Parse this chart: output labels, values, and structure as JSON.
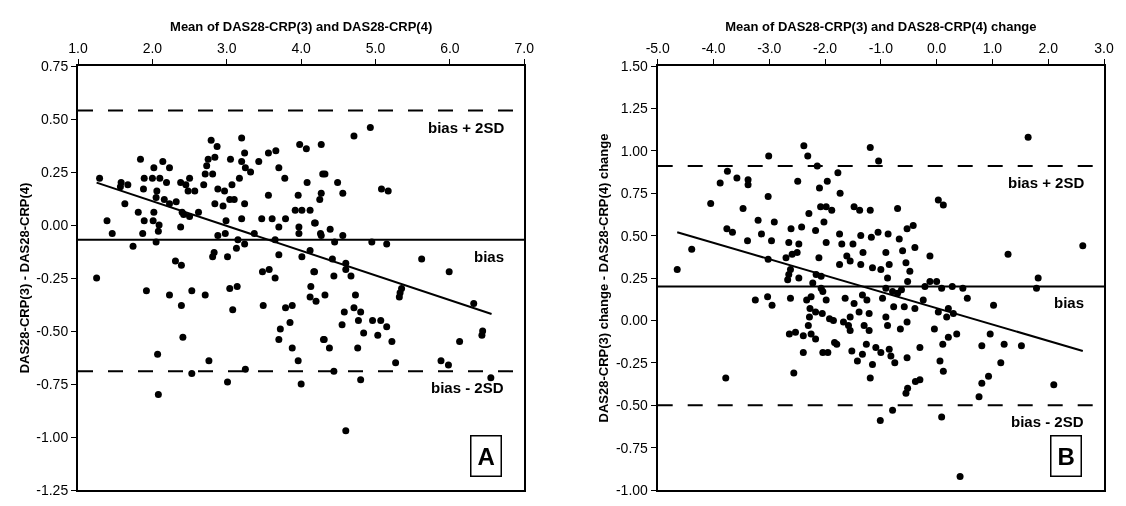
{
  "chart_data": [
    {
      "type": "scatter",
      "xlabel": "Mean of DAS28-CRP(3) and DAS28-CRP(4)",
      "ylabel": "DAS28-CRP(3) - DAS28-CRP(4)",
      "xlim": [
        1.0,
        7.0
      ],
      "xticks": [
        {
          "value": 1,
          "label": "1.0"
        },
        {
          "value": 2,
          "label": "2.0"
        },
        {
          "value": 3,
          "label": "3.0"
        },
        {
          "value": 4,
          "label": "4.0"
        },
        {
          "value": 5,
          "label": "5.0"
        },
        {
          "value": 6,
          "label": "6.0"
        },
        {
          "value": 7,
          "label": "7.0"
        }
      ],
      "ylim": [
        -1.25,
        0.75
      ],
      "yticks": [
        {
          "value": 0.75,
          "label": "0.75"
        },
        {
          "value": 0.5,
          "label": "0.50"
        },
        {
          "value": 0.25,
          "label": "0.25"
        },
        {
          "value": 0,
          "label": "0.00"
        },
        {
          "value": -0.25,
          "label": "-0.25"
        },
        {
          "value": -0.5,
          "label": "-0.50"
        },
        {
          "value": -0.75,
          "label": "-0.75"
        },
        {
          "value": -1,
          "label": "-1.00"
        },
        {
          "value": -1.25,
          "label": "-1.25"
        }
      ],
      "series": [
        {
          "marker": "circle",
          "color": "#000000",
          "x": [
            1.29,
            1.25,
            1.39,
            1.46,
            1.57,
            1.58,
            1.67,
            1.63,
            1.74,
            1.81,
            1.84,
            1.88,
            1.89,
            1.87,
            1.89,
            1.92,
            2.0,
            2.02,
            2.02,
            2.01,
            2.06,
            2.05,
            2.09,
            2.08,
            2.05,
            2.14,
            2.1,
            2.19,
            2.23,
            2.16,
            2.23,
            2.32,
            2.23,
            2.07,
            2.08,
            2.31,
            2.39,
            2.38,
            2.4,
            2.42,
            2.38,
            2.5,
            2.45,
            2.48,
            2.57,
            2.5,
            2.62,
            2.39,
            2.41,
            2.53,
            2.53,
            2.69,
            2.71,
            2.73,
            2.75,
            2.81,
            2.79,
            2.84,
            2.87,
            2.84,
            2.88,
            2.95,
            2.97,
            3.05,
            3.04,
            2.99,
            2.98,
            2.88,
            2.83,
            2.81,
            2.71,
            2.76,
            3.01,
            3.04,
            3.14,
            3.08,
            3.01,
            3.07,
            3.1,
            3.13,
            3.15,
            3.17,
            3.2,
            3.2,
            3.24,
            3.25,
            3.24,
            3.2,
            3.24,
            3.25,
            3.32,
            3.37,
            3.43,
            3.47,
            3.48,
            3.49,
            3.57,
            3.56,
            3.56,
            3.61,
            3.65,
            3.66,
            3.7,
            3.7,
            3.78,
            3.65,
            3.7,
            3.7,
            3.72,
            3.79,
            3.79,
            3.85,
            3.88,
            3.88,
            3.96,
            3.96,
            3.97,
            3.97,
            3.92,
            3.98,
            4.07,
            4.01,
            4.0,
            4.01,
            4.08,
            4.12,
            4.12,
            4.17,
            4.13,
            4.12,
            4.18,
            4.2,
            4.27,
            4.29,
            4.25,
            4.26,
            4.3,
            4.71,
            4.93,
            4.32,
            4.49,
            4.56,
            4.27,
            5.08,
            5.17,
            4.19,
            4.27,
            4.39,
            4.45,
            4.56,
            4.95,
            5.15,
            4.42,
            4.6,
            4.6,
            4.18,
            4.44,
            4.67,
            5.62,
            5.99,
            4.32,
            4.73,
            4.71,
            4.8,
            4.58,
            4.55,
            4.77,
            4.96,
            5.07,
            5.15,
            5.03,
            4.84,
            5.35,
            5.32,
            5.33,
            6.32,
            6.44,
            6.43,
            6.13,
            4.31,
            4.38,
            4.76,
            5.22,
            5.27,
            5.88,
            5.98,
            4.44,
            4.8,
            6.55,
            4.6
          ],
          "values": [
            0.22,
            -0.25,
            0.02,
            -0.04,
            0.18,
            0.2,
            0.19,
            0.1,
            -0.1,
            0.06,
            0.31,
            0.17,
            0.22,
            -0.04,
            0.02,
            -0.31,
            0.22,
            0.27,
            0.06,
            0.02,
            0.16,
            0.13,
            0.0,
            -0.03,
            -0.08,
            0.3,
            0.22,
            0.2,
            0.27,
            0.12,
            0.1,
            0.11,
            -0.33,
            -0.61,
            -0.8,
            -0.17,
            -0.19,
            -0.01,
            0.06,
            0.05,
            0.2,
            0.22,
            0.19,
            0.16,
            0.16,
            0.04,
            0.06,
            -0.38,
            -0.53,
            -0.31,
            -0.7,
            0.19,
            0.24,
            0.28,
            0.31,
            0.24,
            0.4,
            0.32,
            0.37,
            0.1,
            0.17,
            0.09,
            0.16,
            0.31,
            0.12,
            0.02,
            -0.04,
            -0.05,
            -0.13,
            -0.15,
            -0.33,
            -0.64,
            -0.15,
            -0.3,
            -0.29,
            -0.4,
            -0.74,
            0.19,
            0.12,
            -0.11,
            -0.07,
            0.22,
            0.3,
            0.41,
            0.34,
            0.27,
            0.1,
            0.03,
            -0.09,
            -0.68,
            0.25,
            -0.04,
            0.3,
            0.03,
            -0.22,
            -0.38,
            -0.21,
            0.14,
            0.34,
            0.03,
            -0.25,
            0.35,
            -0.01,
            0.27,
            0.22,
            -0.07,
            -0.14,
            -0.54,
            -0.49,
            0.03,
            -0.39,
            -0.46,
            -0.38,
            -0.58,
            -0.64,
            0.14,
            -0.01,
            -0.04,
            0.07,
            0.38,
            0.36,
            -0.15,
            -0.75,
            0.07,
            0.2,
            0.07,
            -0.12,
            -0.22,
            -0.29,
            -0.34,
            0.01,
            -0.36,
            0.38,
            0.24,
            0.12,
            -0.04,
            -0.54,
            0.42,
            0.46,
            0.24,
            0.2,
            0.15,
            0.15,
            0.17,
            0.16,
            0.01,
            -0.05,
            -0.02,
            -0.08,
            -0.05,
            -0.08,
            -0.09,
            -0.16,
            -0.18,
            -0.21,
            -0.22,
            -0.24,
            -0.24,
            -0.16,
            -0.22,
            -0.33,
            -0.33,
            -0.39,
            -0.41,
            -0.41,
            -0.47,
            -0.45,
            -0.45,
            -0.45,
            -0.48,
            -0.52,
            -0.51,
            -0.3,
            -0.34,
            -0.32,
            -0.37,
            -0.5,
            -0.52,
            -0.55,
            -0.54,
            -0.58,
            -0.58,
            -0.55,
            -0.65,
            -0.64,
            -0.66,
            -0.69,
            -0.73,
            -0.72,
            -0.97
          ]
        },
        {
          "type": "line",
          "marker": "none",
          "line_style": "solid",
          "color": "#000000",
          "x": [
            1.25,
            6.56
          ],
          "values": [
            0.2,
            -0.42
          ]
        }
      ],
      "ref_lines": [
        {
          "axis": "y",
          "value": 0.54,
          "label": "bias + 2SD",
          "color": "#000000",
          "line_style": "dashed"
        },
        {
          "axis": "y",
          "value": -0.07,
          "label": "bias",
          "color": "#000000",
          "line_style": "solid"
        },
        {
          "axis": "y",
          "value": -0.69,
          "label": "bias - 2SD",
          "color": "#000000",
          "line_style": "dashed"
        }
      ],
      "annotations": [
        "A"
      ]
    },
    {
      "type": "scatter",
      "xlabel": "Mean of DAS28-CRP(3) and DAS28-CRP(4) change",
      "ylabel": "DAS28-CRP(3) change - DAS28-CRP(4) change",
      "xlim": [
        -5.0,
        3.0
      ],
      "xticks": [
        {
          "value": -5,
          "label": "-5.0"
        },
        {
          "value": -4,
          "label": "-4.0"
        },
        {
          "value": -3,
          "label": "-3.0"
        },
        {
          "value": -2,
          "label": "-2.0"
        },
        {
          "value": -1,
          "label": "-1.0"
        },
        {
          "value": 0,
          "label": "0.0"
        },
        {
          "value": 1,
          "label": "1.0"
        },
        {
          "value": 2,
          "label": "2.0"
        },
        {
          "value": 3,
          "label": "3.0"
        }
      ],
      "ylim": [
        -1.0,
        1.5
      ],
      "yticks": [
        {
          "value": 1.5,
          "label": "1.50"
        },
        {
          "value": 1.25,
          "label": "1.25"
        },
        {
          "value": 1,
          "label": "1.00"
        },
        {
          "value": 0.75,
          "label": "0.75"
        },
        {
          "value": 0.5,
          "label": "0.50"
        },
        {
          "value": 0.25,
          "label": "0.25"
        },
        {
          "value": 0,
          "label": "0.00"
        },
        {
          "value": -0.25,
          "label": "-0.25"
        },
        {
          "value": -0.5,
          "label": "-0.50"
        },
        {
          "value": -0.75,
          "label": "-0.75"
        },
        {
          "value": -1,
          "label": "-1.00"
        }
      ],
      "series": [
        {
          "marker": "circle",
          "color": "#000000",
          "x": [
            -4.65,
            -4.39,
            -4.05,
            -3.88,
            -3.75,
            -3.58,
            -3.38,
            -3.38,
            -3.47,
            -3.76,
            -3.66,
            -3.39,
            -3.78,
            -3.2,
            -3.14,
            -3.02,
            -3.01,
            -2.91,
            -2.96,
            -3.02,
            -3.25,
            -3.03,
            -2.95,
            -2.7,
            -2.65,
            -2.67,
            -2.62,
            -2.61,
            -2.65,
            -2.59,
            -2.5,
            -2.47,
            -2.49,
            -2.42,
            -2.47,
            -2.62,
            -2.64,
            -2.53,
            -2.56,
            -2.38,
            -2.31,
            -2.29,
            -2.14,
            -2.1,
            -2.17,
            -2.11,
            -2.39,
            -2.33,
            -2.27,
            -2.28,
            -2.3,
            -2.39,
            -2.25,
            -2.17,
            -2.25,
            -2.22,
            -2.16,
            -2.07,
            -2.07,
            -2.04,
            -2.17,
            -2.05,
            -1.98,
            -2.04,
            -1.95,
            -2.08,
            -1.98,
            -2.02,
            -1.96,
            -1.88,
            -1.98,
            -1.92,
            -1.83,
            -1.19,
            -1.04,
            -1.77,
            -1.73,
            -1.48,
            -1.38,
            -1.19,
            -0.7,
            0.03,
            0.12,
            -1.74,
            -1.7,
            -1.5,
            -1.36,
            -1.17,
            -1.05,
            -0.87,
            -0.53,
            -0.42,
            -0.67,
            -0.61,
            -0.39,
            -0.91,
            -1.32,
            -1.61,
            -1.55,
            -1.74,
            -1.36,
            -1.15,
            -1.0,
            -0.85,
            -0.55,
            -0.48,
            -0.12,
            -0.88,
            -0.52,
            -0.91,
            -0.79,
            -0.7,
            -0.63,
            -0.21,
            -0.12,
            0.0,
            0.09,
            0.28,
            0.47,
            0.55,
            1.02,
            1.28,
            2.62,
            1.82,
            1.79,
            1.64,
            -1.64,
            -1.48,
            -1.33,
            -1.25,
            -0.97,
            -0.77,
            -0.58,
            -0.39,
            -0.24,
            0.03,
            0.21,
            0.3,
            -1.85,
            -1.67,
            -1.55,
            -1.39,
            -1.21,
            -0.91,
            -1.58,
            -1.3,
            -1.55,
            -1.21,
            -0.88,
            -0.65,
            -0.53,
            -0.04,
            0.18,
            0.36,
            0.21,
            0.96,
            -1.79,
            -1.26,
            -1.09,
            -1.0,
            -1.52,
            -1.33,
            -1.42,
            -1.15,
            -0.85,
            -0.82,
            -0.75,
            -0.53,
            -0.3,
            0.11,
            0.06,
            0.12,
            -1.19,
            -0.55,
            -0.52,
            -0.38,
            -0.3,
            0.81,
            1.21,
            1.52,
            1.15,
            0.93,
            0.81,
            0.76,
            2.1,
            -1.01,
            -0.79,
            0.09,
            0.42
          ],
          "values": [
            0.3,
            0.42,
            0.69,
            0.81,
            0.88,
            0.84,
            0.83,
            0.8,
            0.66,
            0.54,
            0.52,
            0.47,
            -0.34,
            0.59,
            0.51,
            0.73,
            0.97,
            0.58,
            0.47,
            0.36,
            0.12,
            0.14,
            0.09,
            0.37,
            0.27,
            0.24,
            0.3,
            0.54,
            0.46,
            0.39,
            0.4,
            0.45,
            0.82,
            0.55,
            0.25,
            0.13,
            -0.08,
            -0.07,
            -0.31,
            1.03,
            0.97,
            0.63,
            0.91,
            0.78,
            0.53,
            0.37,
            -0.19,
            0.12,
            0.07,
            0.02,
            -0.03,
            -0.09,
            -0.08,
            -0.11,
            0.14,
            0.22,
            0.27,
            0.26,
            0.19,
            0.17,
            0.05,
            0.04,
            0.12,
            -0.19,
            -0.19,
            0.67,
            0.67,
            0.58,
            0.82,
            0.65,
            0.46,
            0.01,
            -0.13,
            1.02,
            0.94,
            0.87,
            0.75,
            0.67,
            0.65,
            0.65,
            0.66,
            0.71,
            0.68,
            0.51,
            0.45,
            0.45,
            0.5,
            0.49,
            0.52,
            0.51,
            0.54,
            0.56,
            0.48,
            0.41,
            0.43,
            0.4,
            0.4,
            0.38,
            0.35,
            0.33,
            0.33,
            0.31,
            0.3,
            0.33,
            0.34,
            0.29,
            0.38,
            0.25,
            0.23,
            0.19,
            0.17,
            0.16,
            0.18,
            0.2,
            0.23,
            0.23,
            0.19,
            0.2,
            0.19,
            0.13,
            0.09,
            0.39,
            0.44,
            0.25,
            0.19,
            1.08,
            0.13,
            0.1,
            0.15,
            0.12,
            0.13,
            0.08,
            0.08,
            0.07,
            0.12,
            0.05,
            0.07,
            0.04,
            0.0,
            -0.01,
            0.02,
            0.05,
            0.04,
            0.02,
            -0.03,
            -0.03,
            -0.06,
            -0.06,
            -0.03,
            -0.05,
            -0.01,
            -0.05,
            0.02,
            -0.08,
            -0.1,
            -0.08,
            -0.14,
            -0.14,
            -0.16,
            -0.19,
            -0.18,
            -0.2,
            -0.24,
            -0.26,
            -0.17,
            -0.21,
            -0.25,
            -0.22,
            -0.16,
            -0.14,
            -0.24,
            -0.3,
            -0.34,
            -0.43,
            -0.4,
            -0.36,
            -0.35,
            -0.15,
            -0.14,
            -0.15,
            -0.25,
            -0.33,
            -0.37,
            -0.45,
            -0.38,
            -0.59,
            -0.53,
            -0.57,
            -0.92
          ]
        },
        {
          "type": "line",
          "marker": "none",
          "line_style": "solid",
          "color": "#000000",
          "x": [
            -4.65,
            2.62
          ],
          "values": [
            0.52,
            -0.18
          ]
        }
      ],
      "ref_lines": [
        {
          "axis": "y",
          "value": 0.91,
          "label": "bias + 2SD",
          "color": "#000000",
          "line_style": "dashed"
        },
        {
          "axis": "y",
          "value": 0.2,
          "label": "bias",
          "color": "#000000",
          "line_style": "solid"
        },
        {
          "axis": "y",
          "value": -0.5,
          "label": "bias - 2SD",
          "color": "#000000",
          "line_style": "dashed"
        }
      ],
      "annotations": [
        "B"
      ]
    }
  ]
}
